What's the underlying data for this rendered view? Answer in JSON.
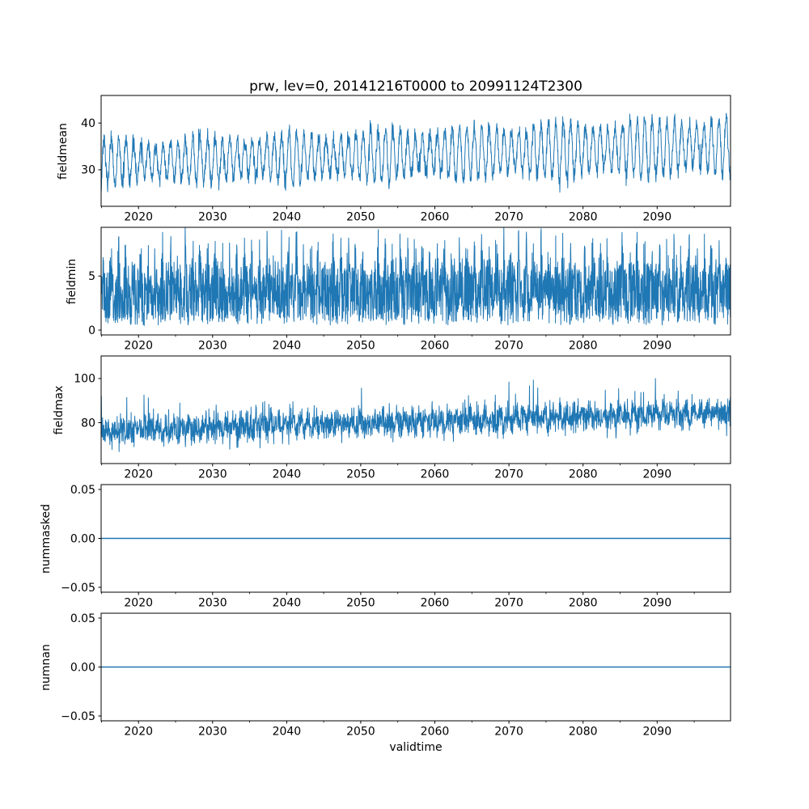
{
  "figure": {
    "title": "prw, lev=0, 20141216T0000 to 20991124T2300",
    "xlabel": "validtime",
    "variable": "prw",
    "level": "lev=0",
    "time_start": "20141216T0000",
    "time_end": "20991124T2300",
    "background_color": "#ffffff",
    "line_color": "#1f77b4",
    "axis_color": "#000000"
  },
  "chart_data": [
    {
      "type": "line",
      "name": "fieldmean",
      "ylabel": "fieldmean",
      "x_range": [
        2014.96,
        2099.9
      ],
      "ylim": [
        22.2,
        45.9
      ],
      "y_tick_values": [
        30,
        40
      ],
      "y_tick_labels": [
        "30",
        "40"
      ],
      "x_tick_values": [
        2020,
        2030,
        2040,
        2050,
        2060,
        2070,
        2080,
        2090
      ],
      "x_tick_labels": [
        "2020",
        "2030",
        "2040",
        "2050",
        "2060",
        "2070",
        "2080",
        "2090"
      ],
      "x_minor_tick_values": [
        2015,
        2025,
        2035,
        2045,
        2055,
        2065,
        2075,
        2085,
        2095
      ],
      "summary": "annual oscillation ~27-38 in 2015 rising to ~30-45 by 2099, one initial dip to ~23.5",
      "gen": {
        "kind": "seasonal_noisy",
        "seed": 7,
        "n": 2600,
        "base_start": 31.6,
        "base_end": 35.2,
        "amp_start": 4.0,
        "amp_end": 5.6,
        "amp_mod": 0.18,
        "phase": 0.08,
        "noise": 1.9,
        "spike_prob": 0.02,
        "spike_mult": 2.2,
        "start_dip_until": 2015.2,
        "start_dip_rate": 10
      }
    },
    {
      "type": "line",
      "name": "fieldmin",
      "ylabel": "fieldmin",
      "x_range": [
        2014.96,
        2099.9
      ],
      "ylim": [
        -0.45,
        9.5
      ],
      "y_tick_values": [
        0,
        5
      ],
      "y_tick_labels": [
        "0",
        "5"
      ],
      "x_tick_values": [
        2020,
        2030,
        2040,
        2050,
        2060,
        2070,
        2080,
        2090
      ],
      "x_tick_labels": [
        "2020",
        "2030",
        "2040",
        "2050",
        "2060",
        "2070",
        "2080",
        "2090"
      ],
      "x_minor_tick_values": [
        2015,
        2025,
        2035,
        2045,
        2055,
        2065,
        2075,
        2085,
        2095
      ],
      "summary": "dense band from ~0.4 to ~6 with annual peaks reaching 8-9.3",
      "gen": {
        "kind": "seasonal_band",
        "seed": 11,
        "n": 2600,
        "lower": 0.35,
        "lower_jitter": 0.5,
        "upper_base_start": 5.8,
        "upper_base_end": 6.2,
        "peak_amp": 3.2,
        "peak_exp": 2,
        "phase": 0.05,
        "upper_jitter": 0.8
      }
    },
    {
      "type": "line",
      "name": "fieldmax",
      "ylabel": "fieldmax",
      "x_range": [
        2014.96,
        2099.9
      ],
      "ylim": [
        61.5,
        110.2
      ],
      "y_tick_values": [
        80,
        100
      ],
      "y_tick_labels": [
        "80",
        "100"
      ],
      "x_tick_values": [
        2020,
        2030,
        2040,
        2050,
        2060,
        2070,
        2080,
        2090
      ],
      "x_tick_labels": [
        "2020",
        "2030",
        "2040",
        "2050",
        "2060",
        "2070",
        "2080",
        "2090"
      ],
      "x_minor_tick_values": [
        2015,
        2025,
        2035,
        2045,
        2055,
        2065,
        2075,
        2085,
        2095
      ],
      "summary": "noisy band ~65-95 in 2015 rising to ~72-108 by 2099, occasional spikes to ~104-108",
      "gen": {
        "kind": "trend_noise",
        "seed": 23,
        "n": 2600,
        "base_start": 76.2,
        "base_end": 84.7,
        "seas_amp": 2.0,
        "phase": 0.6,
        "noise": 5.5,
        "spike_prob": 0.015,
        "spike_add_min": 6,
        "spike_add_max": 14
      }
    },
    {
      "type": "line",
      "name": "nummasked",
      "ylabel": "nummasked",
      "x_range": [
        2014.96,
        2099.9
      ],
      "ylim": [
        -0.055,
        0.055
      ],
      "y_tick_values": [
        -0.05,
        0.0,
        0.05
      ],
      "y_tick_labels": [
        "−0.05",
        "0.00",
        "0.05"
      ],
      "x_tick_values": [
        2020,
        2030,
        2040,
        2050,
        2060,
        2070,
        2080,
        2090
      ],
      "x_tick_labels": [
        "2020",
        "2030",
        "2040",
        "2050",
        "2060",
        "2070",
        "2080",
        "2090"
      ],
      "x_minor_tick_values": [
        2015,
        2025,
        2035,
        2045,
        2055,
        2065,
        2075,
        2085,
        2095
      ],
      "summary": "constant zero for entire period",
      "gen": {
        "kind": "constant",
        "value": 0
      }
    },
    {
      "type": "line",
      "name": "numnan",
      "ylabel": "numnan",
      "x_range": [
        2014.96,
        2099.9
      ],
      "ylim": [
        -0.055,
        0.055
      ],
      "y_tick_values": [
        -0.05,
        0.0,
        0.05
      ],
      "y_tick_labels": [
        "−0.05",
        "0.00",
        "0.05"
      ],
      "x_tick_values": [
        2020,
        2030,
        2040,
        2050,
        2060,
        2070,
        2080,
        2090
      ],
      "x_tick_labels": [
        "2020",
        "2030",
        "2040",
        "2050",
        "2060",
        "2070",
        "2080",
        "2090"
      ],
      "x_minor_tick_values": [
        2015,
        2025,
        2035,
        2045,
        2055,
        2065,
        2075,
        2085,
        2095
      ],
      "summary": "constant zero for entire period",
      "gen": {
        "kind": "constant",
        "value": 0
      }
    }
  ]
}
